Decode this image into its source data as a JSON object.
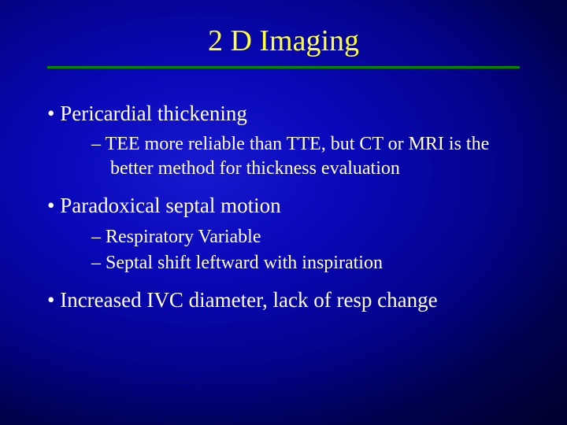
{
  "title": "2 D Imaging",
  "title_color": "#ffff3a",
  "title_fontsize": 38,
  "rule_color": "#008800",
  "text_color": "#ffffff",
  "body_fontsize_level1": 27,
  "body_fontsize_level2": 24,
  "background_gradient": {
    "center_color": "#1818d0",
    "mid_color": "#030388",
    "edge_color": "#000030"
  },
  "bullets": {
    "b1": "Pericardial thickening",
    "b1s1": "TEE more reliable than TTE, but CT or MRI is the better method for thickness evaluation",
    "b2": "Paradoxical septal motion",
    "b2s1": "Respiratory Variable",
    "b2s2": "Septal shift leftward with inspiration",
    "b3": "Increased IVC diameter, lack of resp change"
  }
}
